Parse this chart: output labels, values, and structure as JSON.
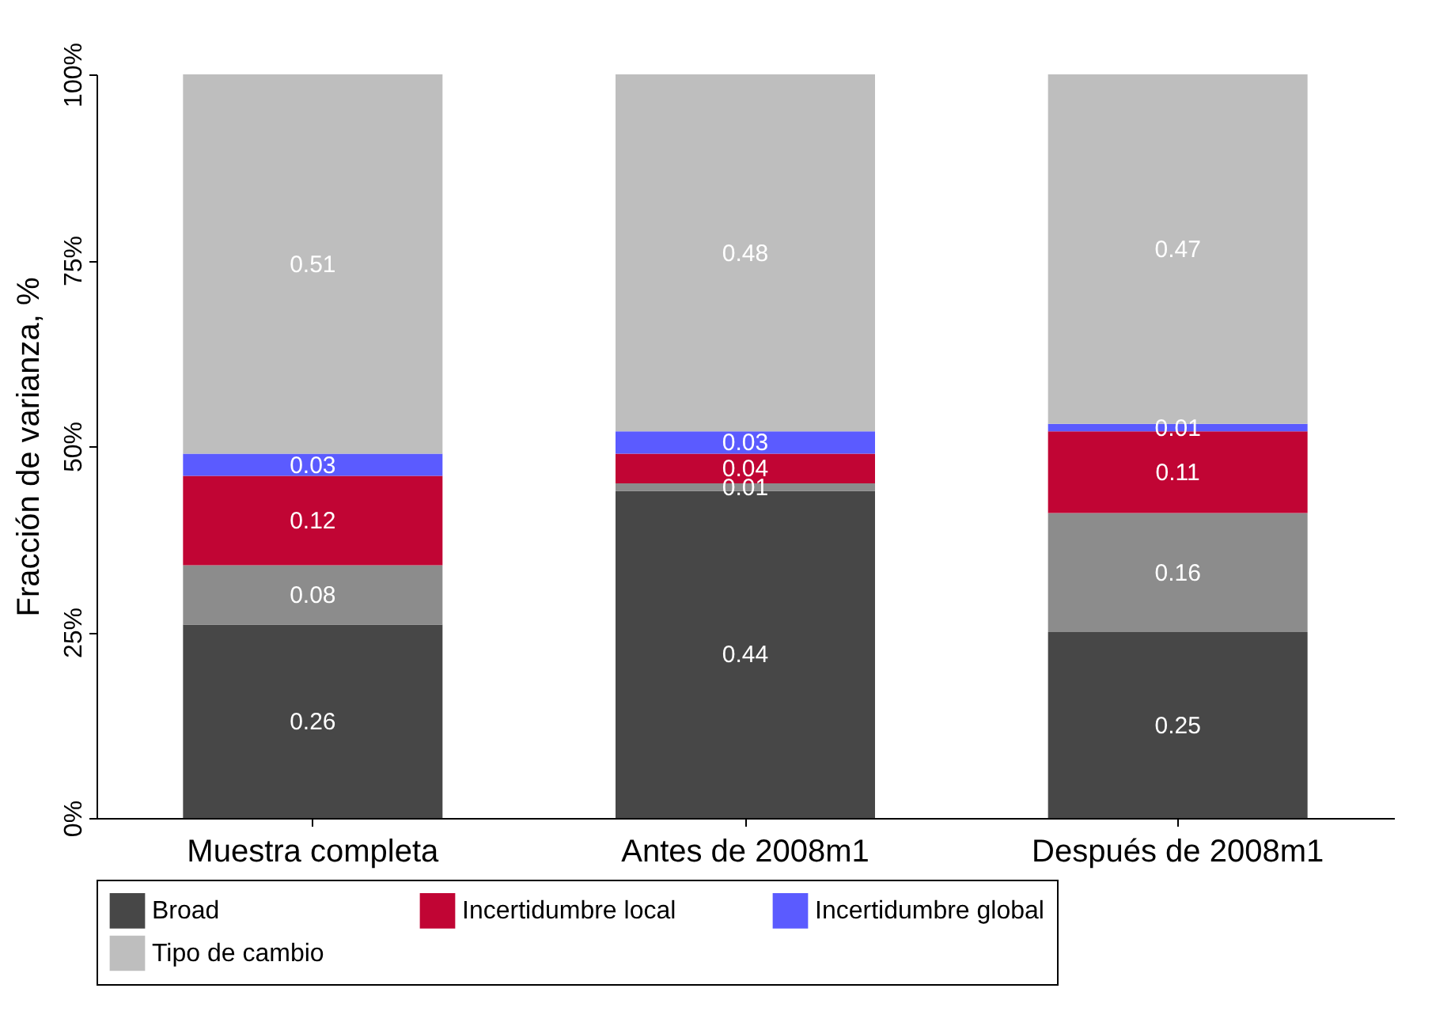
{
  "chart_data": {
    "type": "bar",
    "stacked": true,
    "ylabel": "Fracción de varianza, %",
    "categories": [
      "Muestra completa",
      "Antes de 2008m1",
      "Después de 2008m1"
    ],
    "series": [
      {
        "name": "Broad",
        "color": "#474747",
        "values": [
          0.26,
          0.44,
          0.25
        ]
      },
      {
        "color": "#8c8c8c",
        "values": [
          0.08,
          0.01,
          0.16
        ]
      },
      {
        "name": "Incertidumbre local",
        "color": "#c10534",
        "values": [
          0.12,
          0.04,
          0.11
        ]
      },
      {
        "name": "Incertidumbre global",
        "color": "#5b5bff",
        "values": [
          0.03,
          0.03,
          0.01
        ]
      },
      {
        "name": "Tipo de cambio",
        "color": "#bebebe",
        "values": [
          0.51,
          0.48,
          0.47
        ]
      }
    ],
    "ylim": [
      0,
      1
    ],
    "yticks": [
      {
        "value": 0,
        "label": "0%"
      },
      {
        "value": 0.25,
        "label": "25%"
      },
      {
        "value": 0.5,
        "label": "50%"
      },
      {
        "value": 0.75,
        "label": "75%"
      },
      {
        "value": 1,
        "label": "100%"
      }
    ],
    "data_labels": true,
    "grid": false,
    "legend": "bottom"
  }
}
